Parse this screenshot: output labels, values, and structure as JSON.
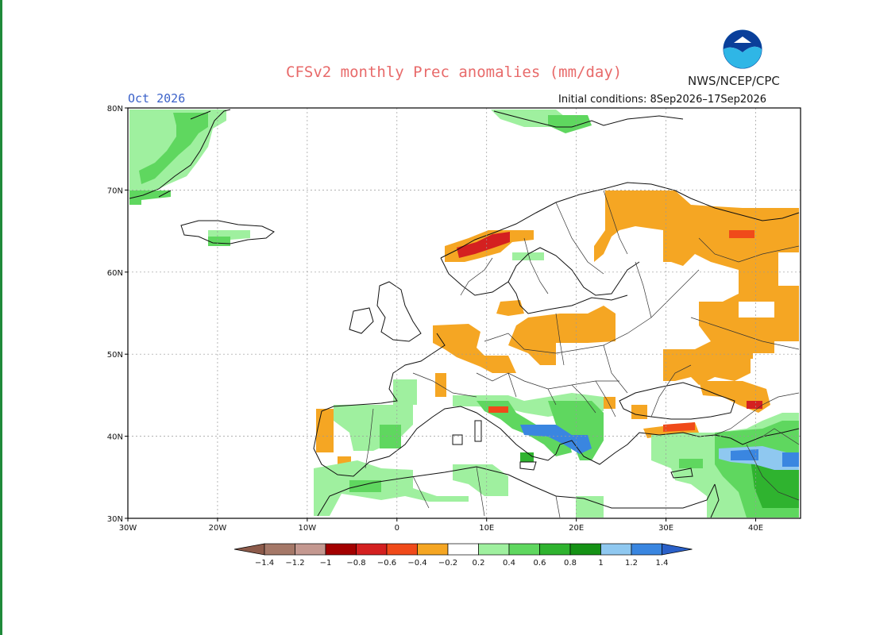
{
  "header": {
    "title": "CFSv2 monthly Prec anomalies (mm/day)",
    "agency": "NWS/NCEP/CPC",
    "month": "Oct 2026",
    "initial_conditions": "Initial conditions: 8Sep2026–17Sep2026",
    "logo_icon": "noaa-logo-icon"
  },
  "map": {
    "lat_ticks": [
      {
        "value": 80,
        "label": "80N"
      },
      {
        "value": 70,
        "label": "70N"
      },
      {
        "value": 60,
        "label": "60N"
      },
      {
        "value": 50,
        "label": "50N"
      },
      {
        "value": 40,
        "label": "40N"
      },
      {
        "value": 30,
        "label": "30N"
      }
    ],
    "lon_ticks": [
      {
        "value": -30,
        "label": "30W"
      },
      {
        "value": -20,
        "label": "20W"
      },
      {
        "value": -10,
        "label": "10W"
      },
      {
        "value": 0,
        "label": "0"
      },
      {
        "value": 10,
        "label": "10E"
      },
      {
        "value": 20,
        "label": "20E"
      },
      {
        "value": 30,
        "label": "30E"
      },
      {
        "value": 40,
        "label": "40E"
      }
    ],
    "lon_range": [
      -30,
      45
    ],
    "lat_range": [
      30,
      80
    ],
    "grid": true
  },
  "legend": {
    "labels": [
      "−1.4",
      "−1.2",
      "−1",
      "−0.8",
      "−0.6",
      "−0.4",
      "−0.2",
      "0.2",
      "0.4",
      "0.6",
      "0.8",
      "1",
      "1.2",
      "1.4"
    ],
    "colors": [
      "#8c5a4a",
      "#a57868",
      "#c49890",
      "#a30000",
      "#d42020",
      "#f04a1a",
      "#f5a623",
      "#ffffff",
      "#9ff09f",
      "#5fd75f",
      "#2fb32f",
      "#159215",
      "#8fc8f0",
      "#3a86e0",
      "#2a60c8"
    ]
  },
  "anomaly_colors": {
    "dry_moderate": "#f5a623",
    "dry_strong": "#f04a1a",
    "dry_extreme": "#d42020",
    "wet_light": "#9ff09f",
    "wet_moderate": "#5fd75f",
    "wet_strong": "#2fb32f",
    "wet_blue": "#3a86e0",
    "wet_light_blue": "#8fc8f0"
  }
}
